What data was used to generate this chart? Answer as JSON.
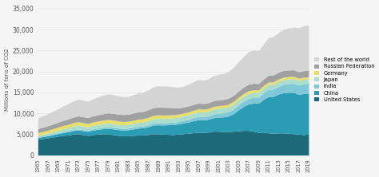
{
  "title": "",
  "ylabel": "Millions of tons of CO2",
  "xlabel": "",
  "years": [
    1965,
    1966,
    1967,
    1968,
    1969,
    1970,
    1971,
    1972,
    1973,
    1974,
    1975,
    1976,
    1977,
    1978,
    1979,
    1980,
    1981,
    1982,
    1983,
    1984,
    1985,
    1986,
    1987,
    1988,
    1989,
    1990,
    1991,
    1992,
    1993,
    1994,
    1995,
    1996,
    1997,
    1998,
    1999,
    2000,
    2001,
    2002,
    2003,
    2004,
    2005,
    2006,
    2007,
    2008,
    2009,
    2010,
    2011,
    2012,
    2013,
    2014,
    2015,
    2016,
    2017,
    2018,
    2019
  ],
  "series": {
    "United States": [
      3800,
      3950,
      4100,
      4300,
      4500,
      4700,
      4800,
      5000,
      5100,
      4900,
      4700,
      4900,
      5000,
      5100,
      5100,
      4900,
      4700,
      4600,
      4600,
      4700,
      4800,
      4800,
      4900,
      5100,
      5100,
      5000,
      4950,
      4900,
      5000,
      5100,
      5200,
      5350,
      5450,
      5400,
      5500,
      5700,
      5700,
      5600,
      5600,
      5700,
      5800,
      5900,
      5900,
      5700,
      5400,
      5500,
      5300,
      5200,
      5300,
      5300,
      5200,
      5100,
      5000,
      4900,
      5000
    ],
    "China": [
      430,
      470,
      510,
      560,
      620,
      680,
      760,
      840,
      900,
      920,
      960,
      1060,
      1130,
      1200,
      1300,
      1350,
      1380,
      1400,
      1440,
      1530,
      1630,
      1720,
      1870,
      2050,
      2130,
      2180,
      2290,
      2370,
      2440,
      2560,
      2680,
      2850,
      3020,
      3000,
      3050,
      3200,
      3350,
      3510,
      3730,
      4200,
      5000,
      5700,
      6300,
      6700,
      7000,
      7800,
      8700,
      8800,
      9300,
      9600,
      9800,
      9900,
      9500,
      9800,
      9800
    ],
    "India": [
      140,
      150,
      165,
      180,
      200,
      210,
      225,
      240,
      255,
      265,
      275,
      295,
      310,
      325,
      345,
      355,
      365,
      370,
      385,
      405,
      420,
      445,
      470,
      495,
      510,
      530,
      545,
      565,
      590,
      625,
      670,
      710,
      760,
      790,
      830,
      880,
      940,
      990,
      1040,
      1100,
      1170,
      1240,
      1340,
      1420,
      1470,
      1580,
      1700,
      1780,
      1870,
      2000,
      2070,
      2140,
      2240,
      2300,
      2400
    ],
    "Japan": [
      340,
      390,
      450,
      520,
      590,
      680,
      750,
      820,
      880,
      850,
      800,
      840,
      870,
      900,
      940,
      920,
      890,
      870,
      880,
      910,
      940,
      940,
      990,
      1030,
      1060,
      1040,
      1050,
      1040,
      1020,
      1040,
      1080,
      1100,
      1130,
      1100,
      1110,
      1150,
      1170,
      1160,
      1150,
      1180,
      1210,
      1200,
      1200,
      1150,
      1100,
      1150,
      1150,
      1160,
      1150,
      1150,
      1150,
      1150,
      1100,
      1080,
      1050
    ],
    "Germany": [
      650,
      690,
      720,
      750,
      770,
      800,
      810,
      820,
      840,
      830,
      820,
      820,
      830,
      820,
      840,
      840,
      810,
      780,
      770,
      780,
      800,
      790,
      800,
      820,
      810,
      800,
      780,
      760,
      720,
      700,
      690,
      690,
      690,
      680,
      670,
      680,
      660,
      650,
      650,
      650,
      640,
      640,
      640,
      630,
      610,
      600,
      600,
      580,
      580,
      570,
      560,
      550,
      540,
      520,
      510
    ],
    "Russian Federation": [
      950,
      1000,
      1060,
      1100,
      1160,
      1200,
      1260,
      1310,
      1380,
      1400,
      1400,
      1450,
      1500,
      1540,
      1570,
      1600,
      1620,
      1650,
      1680,
      1700,
      1730,
      1750,
      1780,
      1820,
      1860,
      1860,
      1790,
      1680,
      1530,
      1430,
      1400,
      1390,
      1380,
      1360,
      1350,
      1360,
      1380,
      1380,
      1400,
      1430,
      1480,
      1500,
      1540,
      1550,
      1500,
      1530,
      1600,
      1620,
      1630,
      1620,
      1560,
      1530,
      1530,
      1560,
      1560
    ],
    "Rest of the world": [
      2650,
      2780,
      2910,
      3050,
      3200,
      3450,
      3650,
      3850,
      4000,
      3950,
      3900,
      4100,
      4250,
      4400,
      4550,
      4500,
      4400,
      4300,
      4250,
      4400,
      4500,
      4600,
      4750,
      5000,
      5100,
      5100,
      5100,
      5000,
      4950,
      5000,
      5200,
      5400,
      5600,
      5600,
      5700,
      6000,
      6100,
      6200,
      6400,
      6700,
      7000,
      7400,
      7800,
      8000,
      7800,
      8400,
      9000,
      9200,
      9500,
      9800,
      10000,
      10200,
      10500,
      10700,
      10800
    ]
  },
  "colors": {
    "United States": "#1b6b7b",
    "China": "#2a9db5",
    "India": "#7ec8d8",
    "Japan": "#aaddcc",
    "Germany": "#e8de6a",
    "Russian Federation": "#a0a0a0",
    "Rest of the world": "#d4d4d4"
  },
  "ylim": [
    0,
    36000
  ],
  "yticks": [
    0,
    5000,
    10000,
    15000,
    20000,
    25000,
    30000,
    35000
  ],
  "background_color": "#f5f5f5",
  "grid_color": "#e0e0e0",
  "legend_order": [
    "Rest of the world",
    "Russian Federation",
    "Germany",
    "Japan",
    "India",
    "China",
    "United States"
  ]
}
